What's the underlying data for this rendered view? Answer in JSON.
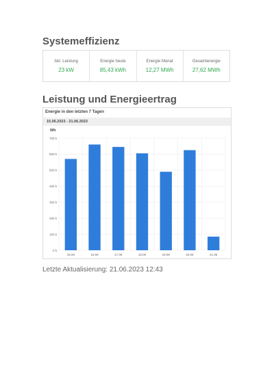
{
  "sections": {
    "efficiency_title": "Systemeffizienz",
    "yield_title": "Leistung und Energieertrag"
  },
  "stats": [
    {
      "label": "Akt. Leistung",
      "value": "23 kW"
    },
    {
      "label": "Energie heute",
      "value": "85,43 kWh"
    },
    {
      "label": "Energie Monat",
      "value": "12,27 MWh"
    },
    {
      "label": "Gesamtenergie",
      "value": "27,62 MWh"
    }
  ],
  "chart_panel": {
    "title": "Energie in den letzten 7 Tagen",
    "range": "15.06.2023 - 21.06.2023"
  },
  "colors": {
    "bar": "#2f7ddb",
    "stat_value": "#2fa84f"
  },
  "chart_data": {
    "type": "bar",
    "ylabel": "Wh",
    "categories": [
      "15.06",
      "16.06",
      "17.06",
      "18.06",
      "19.06",
      "20.06",
      "21.06"
    ],
    "values": [
      570000,
      660000,
      645000,
      605000,
      490000,
      625000,
      85000
    ],
    "ylim": [
      0,
      700000
    ],
    "yticks": [
      0,
      100000,
      200000,
      300000,
      400000,
      500000,
      600000,
      700000
    ],
    "ytick_labels": [
      "0 k",
      "100 k",
      "200 k",
      "300 k",
      "400 k",
      "500 k",
      "600 k",
      "700 k"
    ],
    "grid": true
  },
  "footer": {
    "last_update": "Letzte Aktualisierung: 21.06.2023 12:43"
  }
}
